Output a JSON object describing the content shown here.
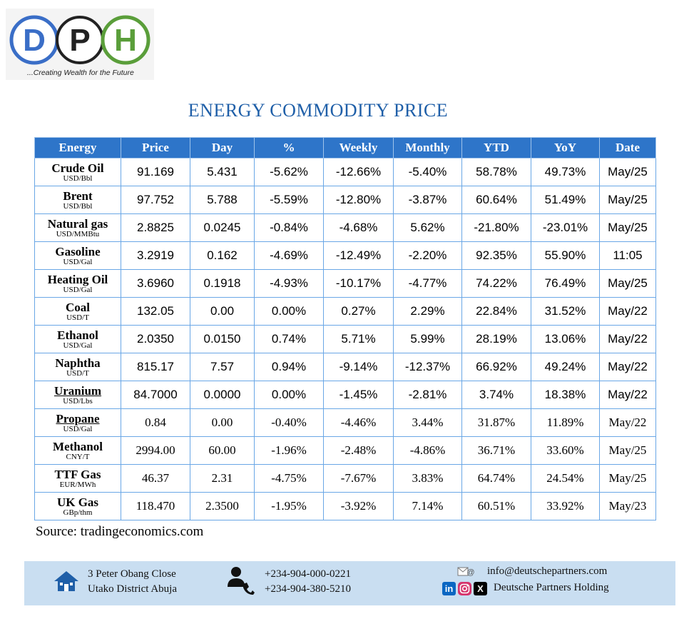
{
  "logo": {
    "letters": [
      "D",
      "P",
      "H"
    ],
    "tagline": "...Creating Wealth for the Future",
    "colors": {
      "d_ring": "#3a6ec7",
      "h_ring": "#5a9e3a"
    }
  },
  "title": "ENERGY COMMODITY PRICE",
  "table": {
    "headers": [
      "Energy",
      "Price",
      "Day",
      "%",
      "Weekly",
      "Monthly",
      "YTD",
      "YoY",
      "Date"
    ],
    "rows": [
      {
        "name": "Crude Oil",
        "unit": "USD/Bbl",
        "price": "91.169",
        "day": "5.431",
        "pct": "-5.62%",
        "weekly": "-12.66%",
        "monthly": "-5.40%",
        "ytd": "58.78%",
        "yoy": "49.73%",
        "date": "May/25"
      },
      {
        "name": "Brent",
        "unit": "USD/Bbl",
        "price": "97.752",
        "day": "5.788",
        "pct": "-5.59%",
        "weekly": "-12.80%",
        "monthly": "-3.87%",
        "ytd": "60.64%",
        "yoy": "51.49%",
        "date": "May/25"
      },
      {
        "name": "Natural gas",
        "unit": "USD/MMBtu",
        "price": "2.8825",
        "day": "0.0245",
        "pct": "-0.84%",
        "weekly": "-4.68%",
        "monthly": "5.62%",
        "ytd": "-21.80%",
        "yoy": "-23.01%",
        "date": "May/25"
      },
      {
        "name": "Gasoline",
        "unit": "USD/Gal",
        "price": "3.2919",
        "day": "0.162",
        "pct": "-4.69%",
        "weekly": "-12.49%",
        "monthly": "-2.20%",
        "ytd": "92.35%",
        "yoy": "55.90%",
        "date": "11:05"
      },
      {
        "name": "Heating Oil",
        "unit": "USD/Gal",
        "price": "3.6960",
        "day": "0.1918",
        "pct": "-4.93%",
        "weekly": "-10.17%",
        "monthly": "-4.77%",
        "ytd": "74.22%",
        "yoy": "76.49%",
        "date": "May/25"
      },
      {
        "name": "Coal",
        "unit": "USD/T",
        "price": "132.05",
        "day": "0.00",
        "pct": "0.00%",
        "weekly": "0.27%",
        "monthly": "2.29%",
        "ytd": "22.84%",
        "yoy": "31.52%",
        "date": "May/22"
      },
      {
        "name": "Ethanol",
        "unit": "USD/Gal",
        "price": "2.0350",
        "day": "0.0150",
        "pct": "0.74%",
        "weekly": "5.71%",
        "monthly": "5.99%",
        "ytd": "28.19%",
        "yoy": "13.06%",
        "date": "May/22"
      },
      {
        "name": "Naphtha",
        "unit": "USD/T",
        "price": "815.17",
        "day": "7.57",
        "pct": "0.94%",
        "weekly": "-9.14%",
        "monthly": "-12.37%",
        "ytd": "66.92%",
        "yoy": "49.24%",
        "date": "May/22"
      },
      {
        "name": "Uranium",
        "unit": "USD/Lbs",
        "price": "84.7000",
        "day": "0.0000",
        "pct": "0.00%",
        "weekly": "-1.45%",
        "monthly": "-2.81%",
        "ytd": "3.74%",
        "yoy": "18.38%",
        "date": "May/22"
      },
      {
        "name": "Propane",
        "unit": "USD/Gal",
        "price": "0.84",
        "day": "0.00",
        "pct": "-0.40%",
        "weekly": "-4.46%",
        "monthly": "3.44%",
        "ytd": "31.87%",
        "yoy": "11.89%",
        "date": "May/22"
      },
      {
        "name": "Methanol",
        "unit": "CNY/T",
        "price": "2994.00",
        "day": "60.00",
        "pct": "-1.96%",
        "weekly": "-2.48%",
        "monthly": "-4.86%",
        "ytd": "36.71%",
        "yoy": "33.60%",
        "date": "May/25"
      },
      {
        "name": "TTF Gas",
        "unit": "EUR/MWh",
        "price": "46.37",
        "day": "2.31",
        "pct": "-4.75%",
        "weekly": "-7.67%",
        "monthly": "3.83%",
        "ytd": "64.74%",
        "yoy": "24.54%",
        "date": "May/25"
      },
      {
        "name": "UK Gas",
        "unit": "GBp/thm",
        "price": "118.470",
        "day": "2.3500",
        "pct": "-1.95%",
        "weekly": "-3.92%",
        "monthly": "7.14%",
        "ytd": "60.51%",
        "yoy": "33.92%",
        "date": "May/23"
      }
    ]
  },
  "source": "Source: tradingeconomics.com",
  "footer": {
    "address_line1": "3 Peter Obang Close",
    "address_line2": "Utako District Abuja",
    "phone1": "+234-904-000-0221",
    "phone2": "+234-904-380-5210",
    "email": "info@deutschepartners.com",
    "social_name": "Deutsche Partners Holding",
    "icons": [
      "house-icon",
      "phone-contact-icon",
      "email-icon",
      "linkedin-icon",
      "instagram-icon",
      "x-icon"
    ],
    "colors": {
      "band": "#c9def1",
      "house": "#1f5fa8"
    }
  },
  "colors": {
    "header": "#2e75c9",
    "title": "#1f5fa8",
    "grid": "#6aa7e6"
  }
}
